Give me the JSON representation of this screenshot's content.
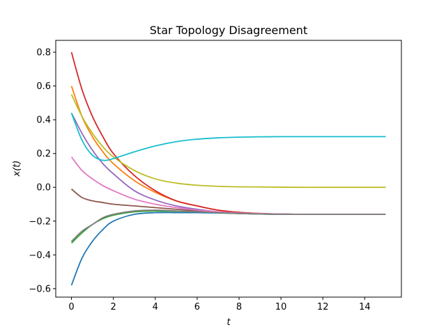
{
  "chart_data": {
    "type": "line",
    "title": "Star Topology Disagreement",
    "xlabel": "t",
    "ylabel": "x(t)",
    "xlim": [
      -0.75,
      15.75
    ],
    "ylim": [
      -0.65,
      0.87
    ],
    "xticks": [
      0,
      2,
      4,
      6,
      8,
      10,
      12,
      14
    ],
    "yticks": [
      -0.6,
      -0.4,
      -0.2,
      0.0,
      0.2,
      0.4,
      0.6,
      0.8
    ],
    "xtick_labels": [
      "0",
      "2",
      "4",
      "6",
      "8",
      "10",
      "12",
      "14"
    ],
    "ytick_labels": [
      "−0.6",
      "−0.4",
      "−0.2",
      "0.0",
      "0.2",
      "0.4",
      "0.6",
      "0.8"
    ],
    "grid": false,
    "x": [
      0,
      0.5,
      1,
      1.5,
      2,
      3,
      4,
      5,
      6,
      7,
      8,
      9,
      10,
      11,
      12,
      13,
      14,
      15
    ],
    "series": [
      {
        "color": "#1f77b4",
        "values": [
          -0.58,
          -0.42,
          -0.32,
          -0.25,
          -0.2,
          -0.16,
          -0.15,
          -0.15,
          -0.15,
          -0.152,
          -0.155,
          -0.158,
          -0.16,
          -0.16,
          -0.16,
          -0.16,
          -0.16,
          -0.16
        ]
      },
      {
        "color": "#ff7f0e",
        "values": [
          0.6,
          0.42,
          0.3,
          0.21,
          0.14,
          0.04,
          -0.03,
          -0.08,
          -0.11,
          -0.135,
          -0.148,
          -0.155,
          -0.158,
          -0.16,
          -0.16,
          -0.16,
          -0.16,
          -0.16
        ]
      },
      {
        "color": "#2ca02c",
        "values": [
          -0.33,
          -0.27,
          -0.22,
          -0.185,
          -0.165,
          -0.145,
          -0.14,
          -0.142,
          -0.145,
          -0.15,
          -0.155,
          -0.158,
          -0.16,
          -0.16,
          -0.16,
          -0.16,
          -0.16,
          -0.16
        ]
      },
      {
        "color": "#d62728",
        "values": [
          0.8,
          0.58,
          0.42,
          0.3,
          0.2,
          0.07,
          -0.02,
          -0.08,
          -0.11,
          -0.135,
          -0.148,
          -0.155,
          -0.158,
          -0.16,
          -0.16,
          -0.16,
          -0.16,
          -0.16
        ]
      },
      {
        "color": "#9467bd",
        "values": [
          0.44,
          0.32,
          0.22,
          0.14,
          0.08,
          -0.02,
          -0.075,
          -0.11,
          -0.13,
          -0.145,
          -0.152,
          -0.156,
          -0.158,
          -0.16,
          -0.16,
          -0.16,
          -0.16,
          -0.16
        ]
      },
      {
        "color": "#8c564b",
        "values": [
          -0.01,
          -0.06,
          -0.08,
          -0.09,
          -0.1,
          -0.11,
          -0.12,
          -0.13,
          -0.14,
          -0.148,
          -0.153,
          -0.157,
          -0.159,
          -0.16,
          -0.16,
          -0.16,
          -0.16,
          -0.16
        ]
      },
      {
        "color": "#e377c2",
        "values": [
          0.18,
          0.1,
          0.05,
          0.01,
          -0.02,
          -0.07,
          -0.1,
          -0.12,
          -0.135,
          -0.145,
          -0.152,
          -0.156,
          -0.158,
          -0.16,
          -0.16,
          -0.16,
          -0.16,
          -0.16
        ]
      },
      {
        "color": "#7f7f7f",
        "values": [
          -0.32,
          -0.26,
          -0.22,
          -0.18,
          -0.16,
          -0.14,
          -0.135,
          -0.14,
          -0.145,
          -0.15,
          -0.155,
          -0.158,
          -0.16,
          -0.16,
          -0.16,
          -0.16,
          -0.16,
          -0.16
        ]
      },
      {
        "color": "#bcbd22",
        "values": [
          0.55,
          0.42,
          0.32,
          0.24,
          0.18,
          0.1,
          0.05,
          0.025,
          0.012,
          0.006,
          0.003,
          0.002,
          0.001,
          0.0,
          0.0,
          0.0,
          0.0,
          0.0
        ]
      },
      {
        "color": "#17becf",
        "values": [
          0.44,
          0.28,
          0.19,
          0.16,
          0.17,
          0.21,
          0.245,
          0.27,
          0.285,
          0.293,
          0.297,
          0.299,
          0.3,
          0.3,
          0.3,
          0.3,
          0.3,
          0.3
        ]
      }
    ]
  }
}
